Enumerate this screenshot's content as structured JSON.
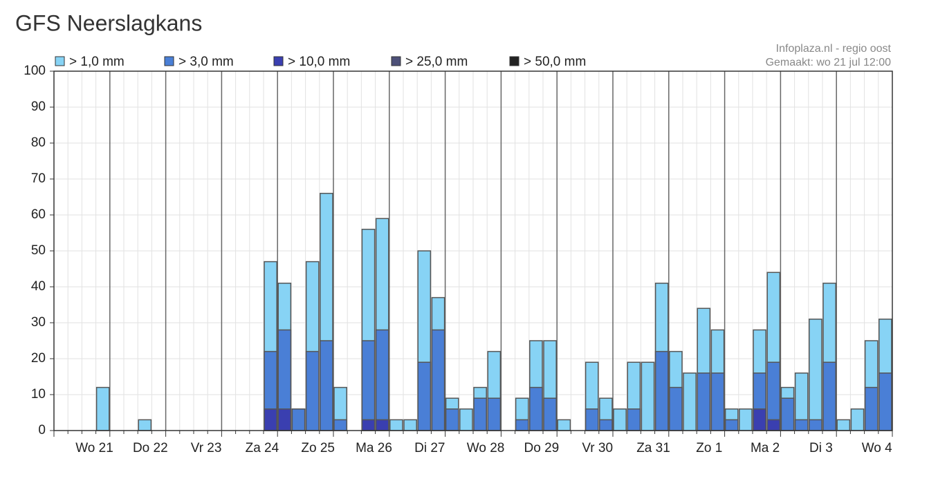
{
  "chart_data": {
    "type": "bar",
    "title": "GFS Neerslagkans",
    "source": "Infoplaza.nl - regio oost",
    "made": "Gemaakt: wo 21 jul 12:00",
    "categories": [
      null,
      null,
      "Wo 21",
      null,
      null,
      null,
      "Do 22",
      null,
      null,
      null,
      "Vr 23",
      null,
      null,
      null,
      "Za 24",
      null,
      null,
      null,
      "Zo 25",
      null,
      null,
      null,
      "Ma 26",
      null,
      null,
      null,
      "Di 27",
      null,
      null,
      null,
      "Wo 28",
      null,
      null,
      null,
      "Do 29",
      null,
      null,
      null,
      "Vr 30",
      null,
      null,
      null,
      "Za 31",
      null,
      null,
      null,
      "Zo 1",
      null,
      null,
      null,
      "Ma 2",
      null,
      null,
      null,
      "Di 3",
      null,
      null,
      null,
      "Wo 4",
      null
    ],
    "series": [
      {
        "name": "> 1,0 mm",
        "color": "#87d3f5",
        "values": [
          0,
          0,
          0,
          12,
          0,
          0,
          3,
          0,
          0,
          0,
          0,
          0,
          0,
          0,
          0,
          47,
          41,
          6,
          47,
          66,
          12,
          0,
          56,
          59,
          3,
          3,
          50,
          37,
          9,
          6,
          12,
          22,
          0,
          9,
          25,
          25,
          3,
          0,
          19,
          9,
          6,
          19,
          19,
          41,
          22,
          16,
          34,
          28,
          6,
          6,
          28,
          44,
          12,
          16,
          31,
          41,
          3,
          6,
          25,
          31
        ]
      },
      {
        "name": "> 3,0 mm",
        "color": "#4a7fd6",
        "values": [
          0,
          0,
          0,
          0,
          0,
          0,
          0,
          0,
          0,
          0,
          0,
          0,
          0,
          0,
          0,
          22,
          28,
          6,
          22,
          25,
          3,
          0,
          25,
          28,
          0,
          0,
          19,
          28,
          6,
          0,
          9,
          9,
          0,
          3,
          12,
          9,
          0,
          0,
          6,
          3,
          0,
          6,
          0,
          22,
          12,
          0,
          16,
          16,
          3,
          0,
          16,
          19,
          9,
          3,
          3,
          19,
          0,
          0,
          12,
          16
        ]
      },
      {
        "name": "> 10,0 mm",
        "color": "#3a3fb0",
        "values": [
          0,
          0,
          0,
          0,
          0,
          0,
          0,
          0,
          0,
          0,
          0,
          0,
          0,
          0,
          0,
          6,
          6,
          0,
          0,
          0,
          0,
          0,
          3,
          3,
          0,
          0,
          0,
          0,
          0,
          0,
          0,
          0,
          0,
          0,
          0,
          0,
          0,
          0,
          0,
          0,
          0,
          0,
          0,
          0,
          0,
          0,
          0,
          0,
          0,
          0,
          6,
          3,
          0,
          0,
          0,
          0,
          0,
          0,
          0,
          0
        ]
      },
      {
        "name": "> 25,0 mm",
        "color": "#4d5078",
        "values": [
          0,
          0,
          0,
          0,
          0,
          0,
          0,
          0,
          0,
          0,
          0,
          0,
          0,
          0,
          0,
          0,
          0,
          0,
          0,
          0,
          0,
          0,
          0,
          0,
          0,
          0,
          0,
          0,
          0,
          0,
          0,
          0,
          0,
          0,
          0,
          0,
          0,
          0,
          0,
          0,
          0,
          0,
          0,
          0,
          0,
          0,
          0,
          0,
          0,
          0,
          0,
          0,
          0,
          0,
          0,
          0,
          0,
          0,
          0,
          0
        ]
      },
      {
        "name": "> 50,0 mm",
        "color": "#222222",
        "values": [
          0,
          0,
          0,
          0,
          0,
          0,
          0,
          0,
          0,
          0,
          0,
          0,
          0,
          0,
          0,
          0,
          0,
          0,
          0,
          0,
          0,
          0,
          0,
          0,
          0,
          0,
          0,
          0,
          0,
          0,
          0,
          0,
          0,
          0,
          0,
          0,
          0,
          0,
          0,
          0,
          0,
          0,
          0,
          0,
          0,
          0,
          0,
          0,
          0,
          0,
          0,
          0,
          0,
          0,
          0,
          0,
          0,
          0,
          0,
          0
        ]
      }
    ],
    "ylim": [
      0,
      100
    ],
    "yticks": [
      0,
      10,
      20,
      30,
      40,
      50,
      60,
      70,
      80,
      90,
      100
    ],
    "grid": true
  }
}
